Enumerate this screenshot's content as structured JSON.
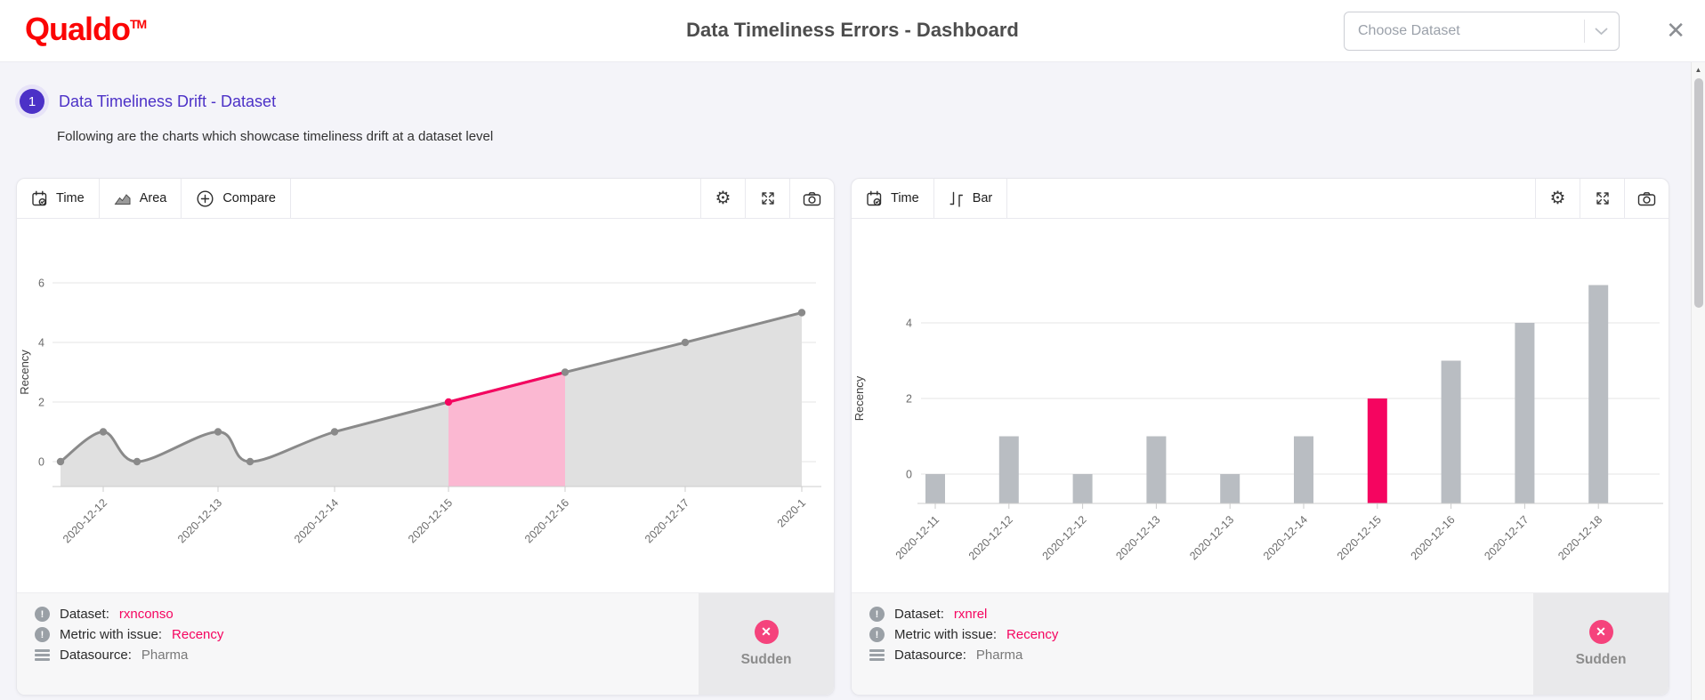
{
  "header": {
    "logo_text": "Qualdo",
    "logo_tm": "TM",
    "title": "Data Timeliness Errors - Dashboard",
    "dataset_select": {
      "placeholder": "Choose Dataset"
    },
    "close_icon": "✕"
  },
  "icons": {
    "gear": "⚙",
    "badge_x": "✕",
    "info": "!",
    "scroll_up": "▲"
  },
  "section": {
    "number": "1",
    "title": "Data Timeliness Drift - Dataset",
    "subtitle": "Following are the charts which showcase timeliness drift at a dataset level"
  },
  "cards": [
    {
      "toolbar": {
        "time_label": "Time",
        "type_label": "Area",
        "compare_label": "Compare"
      },
      "footer": {
        "dataset_label": "Dataset:",
        "dataset_value": "rxnconso",
        "metric_label": "Metric with issue:",
        "metric_value": "Recency",
        "datasource_label": "Datasource:",
        "datasource_value": "Pharma",
        "badge_label": "Sudden"
      }
    },
    {
      "toolbar": {
        "time_label": "Time",
        "type_label": "Bar"
      },
      "footer": {
        "dataset_label": "Dataset:",
        "dataset_value": "rxnrel",
        "metric_label": "Metric with issue:",
        "metric_value": "Recency",
        "datasource_label": "Datasource:",
        "datasource_value": "Pharma",
        "badge_label": "Sudden"
      }
    }
  ],
  "chart_data": [
    {
      "type": "area",
      "title": "",
      "ylabel": "Recency",
      "yticks": [
        0,
        2,
        4,
        6
      ],
      "ylim": [
        0,
        6
      ],
      "x": [
        "2020-12-11",
        "2020-12-12",
        "2020-12-12",
        "2020-12-13",
        "2020-12-13",
        "2020-12-14",
        "2020-12-15",
        "2020-12-16",
        "2020-12-17",
        "2020-12-18"
      ],
      "values": [
        0,
        1,
        0,
        1,
        0,
        1,
        2,
        3,
        4,
        5
      ],
      "x_tick_labels": [
        "2020-12-12",
        "2020-12-13",
        "2020-12-14",
        "2020-12-15",
        "2020-12-16",
        "2020-12-17",
        "2020-1"
      ],
      "highlight": {
        "from": "2020-12-15",
        "to": "2020-12-16",
        "from_index": 6,
        "to_index": 7
      },
      "grid": true,
      "legend": false
    },
    {
      "type": "bar",
      "title": "",
      "ylabel": "Recency",
      "yticks": [
        0,
        2,
        4
      ],
      "ylim": [
        0,
        5.5
      ],
      "categories": [
        "2020-12-11",
        "2020-12-12",
        "2020-12-12",
        "2020-12-13",
        "2020-12-13",
        "2020-12-14",
        "2020-12-15",
        "2020-12-16",
        "2020-12-17",
        "2020-12-18"
      ],
      "values": [
        0,
        1,
        0,
        1,
        0,
        1,
        2,
        3,
        4,
        5
      ],
      "highlight_index": 6,
      "grid": true,
      "legend": false
    }
  ],
  "colors": {
    "accent_pink": "#f50560",
    "pink_area": "#fbb8d2",
    "gray_line": "#8a8a8a",
    "gray_area": "#e0e0e0",
    "bar_gray": "#b9bdc2",
    "grid_line": "#e4e4e6",
    "axis_line": "#cccccc",
    "brand_red": "#fb0505",
    "purple": "#4c31c7",
    "badge_pink": "#f5437c"
  }
}
